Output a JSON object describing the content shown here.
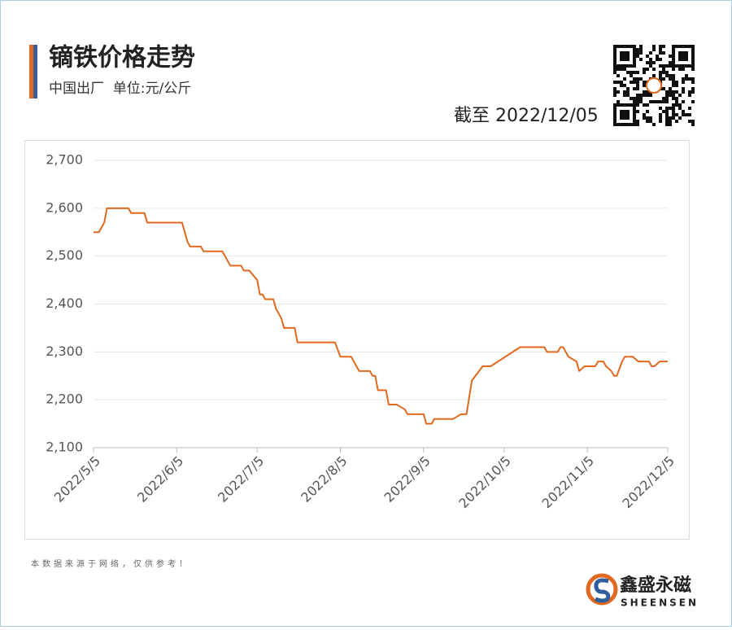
{
  "chart_data": {
    "type": "line",
    "title": "镝铁价格走势",
    "subtitle": "中国出厂  单位:元/公斤",
    "note": "截至 2022/12/05",
    "color": "#e0691f",
    "grid": true,
    "x": [
      "2022-05-05",
      "2022-05-07",
      "2022-05-09",
      "2022-05-10",
      "2022-05-18",
      "2022-05-19",
      "2022-05-24",
      "2022-05-25",
      "2022-06-07",
      "2022-06-09",
      "2022-06-10",
      "2022-06-14",
      "2022-06-15",
      "2022-06-22",
      "2022-06-25",
      "2022-06-29",
      "2022-06-30",
      "2022-07-02",
      "2022-07-05",
      "2022-07-06",
      "2022-07-07",
      "2022-07-08",
      "2022-07-11",
      "2022-07-12",
      "2022-07-14",
      "2022-07-15",
      "2022-07-19",
      "2022-07-20",
      "2022-08-03",
      "2022-08-05",
      "2022-08-09",
      "2022-08-11",
      "2022-08-12",
      "2022-08-16",
      "2022-08-17",
      "2022-08-18",
      "2022-08-19",
      "2022-08-22",
      "2022-08-23",
      "2022-08-26",
      "2022-08-29",
      "2022-08-30",
      "2022-09-05",
      "2022-09-06",
      "2022-09-08",
      "2022-09-09",
      "2022-09-16",
      "2022-09-19",
      "2022-09-21",
      "2022-09-23",
      "2022-09-27",
      "2022-09-30",
      "2022-10-11",
      "2022-10-20",
      "2022-10-21",
      "2022-10-25",
      "2022-10-26",
      "2022-10-27",
      "2022-10-29",
      "2022-11-01",
      "2022-11-02",
      "2022-11-04",
      "2022-11-08",
      "2022-11-09",
      "2022-11-11",
      "2022-11-12",
      "2022-11-14",
      "2022-11-15",
      "2022-11-16",
      "2022-11-18",
      "2022-11-19",
      "2022-11-22",
      "2022-11-24",
      "2022-11-28",
      "2022-11-29",
      "2022-11-30",
      "2022-12-02",
      "2022-12-05"
    ],
    "values": [
      2550,
      2550,
      2570,
      2600,
      2600,
      2590,
      2590,
      2570,
      2570,
      2530,
      2520,
      2520,
      2510,
      2510,
      2480,
      2480,
      2470,
      2470,
      2450,
      2420,
      2420,
      2410,
      2410,
      2390,
      2370,
      2350,
      2350,
      2320,
      2320,
      2290,
      2290,
      2270,
      2260,
      2260,
      2250,
      2250,
      2220,
      2220,
      2190,
      2190,
      2180,
      2170,
      2170,
      2150,
      2150,
      2160,
      2160,
      2170,
      2170,
      2240,
      2270,
      2270,
      2310,
      2310,
      2300,
      2300,
      2310,
      2310,
      2290,
      2280,
      2260,
      2270,
      2270,
      2280,
      2280,
      2270,
      2260,
      2250,
      2250,
      2280,
      2290,
      2290,
      2280,
      2280,
      2270,
      2270,
      2280,
      2280
    ],
    "xlim": [
      "2022-05-05",
      "2022-12-05"
    ],
    "xticks": [
      {
        "value": "2022-05-05",
        "label": "2022/5/5"
      },
      {
        "value": "2022-06-05",
        "label": "2022/6/5"
      },
      {
        "value": "2022-07-05",
        "label": "2022/7/5"
      },
      {
        "value": "2022-08-05",
        "label": "2022/8/5"
      },
      {
        "value": "2022-09-05",
        "label": "2022/9/5"
      },
      {
        "value": "2022-10-05",
        "label": "2022/10/5"
      },
      {
        "value": "2022-11-05",
        "label": "2022/11/5"
      },
      {
        "value": "2022-12-05",
        "label": "2022/12/5"
      }
    ],
    "ylim": [
      2100,
      2700
    ],
    "yticks": [
      {
        "value": 2100,
        "label": "2,100"
      },
      {
        "value": 2200,
        "label": "2,200"
      },
      {
        "value": 2300,
        "label": "2,300"
      },
      {
        "value": 2400,
        "label": "2,400"
      },
      {
        "value": 2500,
        "label": "2,500"
      },
      {
        "value": 2600,
        "label": "2,600"
      },
      {
        "value": 2700,
        "label": "2,700"
      }
    ]
  },
  "page": {
    "footer": "本数据来源于网络，仅供参考！",
    "brand": "鑫盛永磁",
    "brand_en": "SHEENSEN"
  }
}
